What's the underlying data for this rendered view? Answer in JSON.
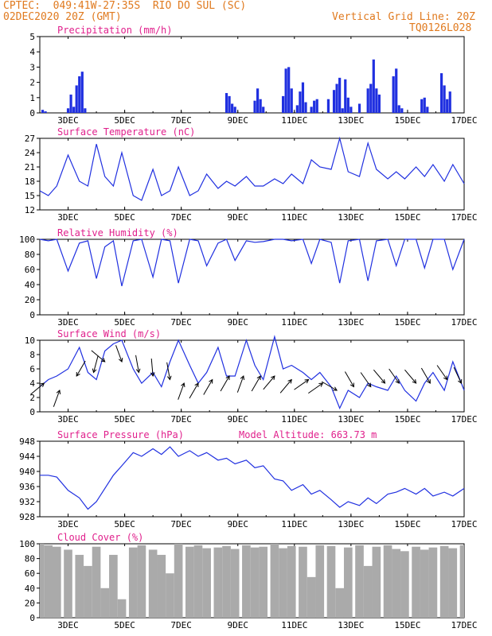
{
  "header": {
    "line1_left": "CPTEC:  049:41W-27:35S  RIO DO SUL (SC)",
    "line2_left": "02DEC2020 20Z (GMT)",
    "line1_right": "Vertical Grid Line: 20Z",
    "line2_right": "TQ0126L028"
  },
  "colors": {
    "header": "#e07a1f",
    "title": "#e0208c",
    "series": "#2030e0",
    "cloud": "#aaaaaa",
    "arrow": "#000000"
  },
  "x_tick_labels": [
    "3DEC",
    "5DEC",
    "7DEC",
    "9DEC",
    "11DEC",
    "13DEC",
    "15DEC",
    "17DEC"
  ],
  "chart_data": [
    {
      "type": "bar",
      "title": "Precipitation (mm/h)",
      "ylim": [
        0,
        5
      ],
      "yticks": [
        "0",
        "1",
        "2",
        "3",
        "4",
        "5"
      ],
      "x_range_days": [
        2.0,
        17.0
      ],
      "series": [
        {
          "name": "",
          "x": [
            2.1,
            2.2,
            3.0,
            3.1,
            3.2,
            3.3,
            3.4,
            3.5,
            3.6,
            8.6,
            8.7,
            8.8,
            8.9,
            9.6,
            9.7,
            9.8,
            9.9,
            10.6,
            10.7,
            10.8,
            10.9,
            11.1,
            11.2,
            11.3,
            11.4,
            11.6,
            11.7,
            11.8,
            12.2,
            12.4,
            12.5,
            12.6,
            12.7,
            12.8,
            12.9,
            13.0,
            13.3,
            13.6,
            13.7,
            13.8,
            13.9,
            14.0,
            14.5,
            14.6,
            14.7,
            14.8,
            15.5,
            15.6,
            15.7,
            16.2,
            16.3,
            16.4,
            16.5
          ],
          "values": [
            0.2,
            0.1,
            0.3,
            1.2,
            0.4,
            1.8,
            2.4,
            2.7,
            0.3,
            1.3,
            1.1,
            0.6,
            0.4,
            0.8,
            1.6,
            0.9,
            0.4,
            1.1,
            2.9,
            3.0,
            1.6,
            0.5,
            1.4,
            2.0,
            0.7,
            0.4,
            0.8,
            0.9,
            0.9,
            1.5,
            1.9,
            2.3,
            0.3,
            2.2,
            1.0,
            0.4,
            0.6,
            1.6,
            1.9,
            3.5,
            1.6,
            1.2,
            2.4,
            2.9,
            0.5,
            0.3,
            0.9,
            1.0,
            0.4,
            2.6,
            1.8,
            0.9,
            1.4
          ]
        }
      ]
    },
    {
      "type": "line",
      "title": "Surface Temperature (nC)",
      "ylim": [
        12,
        27
      ],
      "yticks": [
        "12",
        "15",
        "18",
        "21",
        "24",
        "27"
      ],
      "series": [
        {
          "name": "",
          "x": [
            2.0,
            2.3,
            2.6,
            3.0,
            3.4,
            3.7,
            4.0,
            4.3,
            4.6,
            4.9,
            5.3,
            5.6,
            6.0,
            6.3,
            6.6,
            6.9,
            7.3,
            7.6,
            7.9,
            8.3,
            8.6,
            8.9,
            9.3,
            9.6,
            9.9,
            10.3,
            10.6,
            10.9,
            11.3,
            11.6,
            11.9,
            12.3,
            12.6,
            12.9,
            13.3,
            13.6,
            13.9,
            14.3,
            14.6,
            14.9,
            15.3,
            15.6,
            15.9,
            16.3,
            16.6,
            17.0
          ],
          "values": [
            16.0,
            15.0,
            17.0,
            23.5,
            18.0,
            17.0,
            25.8,
            19.0,
            17.0,
            24.0,
            15.0,
            14.0,
            20.5,
            15.0,
            16.0,
            21.0,
            15.0,
            16.0,
            19.5,
            16.5,
            18.0,
            17.0,
            19.0,
            17.0,
            17.0,
            18.5,
            17.5,
            19.5,
            17.5,
            22.5,
            21.0,
            20.5,
            27.0,
            20.0,
            19.0,
            26.0,
            20.5,
            18.5,
            20.0,
            18.5,
            21.0,
            19.0,
            21.5,
            18.0,
            21.5,
            17.5
          ]
        }
      ]
    },
    {
      "type": "line",
      "title": "Relative Humidity (%)",
      "ylim": [
        0,
        100
      ],
      "yticks": [
        "0",
        "20",
        "40",
        "60",
        "80",
        "100"
      ],
      "series": [
        {
          "name": "",
          "x": [
            2.0,
            2.3,
            2.6,
            3.0,
            3.4,
            3.7,
            4.0,
            4.3,
            4.6,
            4.9,
            5.3,
            5.6,
            6.0,
            6.3,
            6.6,
            6.9,
            7.3,
            7.6,
            7.9,
            8.3,
            8.6,
            8.9,
            9.3,
            9.6,
            9.9,
            10.3,
            10.6,
            10.9,
            11.3,
            11.6,
            11.9,
            12.3,
            12.6,
            12.9,
            13.3,
            13.6,
            13.9,
            14.3,
            14.6,
            14.9,
            15.3,
            15.6,
            15.9,
            16.3,
            16.6,
            17.0
          ],
          "values": [
            100,
            98,
            100,
            58,
            95,
            98,
            48,
            90,
            98,
            38,
            98,
            100,
            50,
            100,
            98,
            42,
            100,
            98,
            65,
            95,
            100,
            72,
            98,
            96,
            97,
            100,
            100,
            98,
            100,
            68,
            100,
            96,
            42,
            98,
            100,
            45,
            98,
            100,
            65,
            100,
            100,
            62,
            100,
            100,
            60,
            100
          ]
        }
      ]
    },
    {
      "type": "line",
      "title": "Surface Wind (m/s)",
      "ylim": [
        0,
        10
      ],
      "yticks": [
        "0",
        "2",
        "4",
        "6",
        "8",
        "10"
      ],
      "series": [
        {
          "name": "",
          "x": [
            2.0,
            2.3,
            2.6,
            3.0,
            3.4,
            3.7,
            4.0,
            4.3,
            4.6,
            4.9,
            5.3,
            5.6,
            6.0,
            6.3,
            6.6,
            6.9,
            7.3,
            7.6,
            7.9,
            8.3,
            8.6,
            8.9,
            9.3,
            9.6,
            9.9,
            10.3,
            10.6,
            10.9,
            11.3,
            11.6,
            11.9,
            12.3,
            12.6,
            12.9,
            13.3,
            13.6,
            13.9,
            14.3,
            14.6,
            14.9,
            15.3,
            15.6,
            15.9,
            16.3,
            16.6,
            17.0
          ],
          "values": [
            3.5,
            4.5,
            5.0,
            6.0,
            9.0,
            5.5,
            4.5,
            8.5,
            9.5,
            10.0,
            6.0,
            4.0,
            5.5,
            3.5,
            7.0,
            10.0,
            6.5,
            4.0,
            5.5,
            9.0,
            5.0,
            5.0,
            10.0,
            6.5,
            4.5,
            10.5,
            6.0,
            6.5,
            5.5,
            4.5,
            5.5,
            3.5,
            0.5,
            3.0,
            2.0,
            4.0,
            3.5,
            3.0,
            5.0,
            3.0,
            1.5,
            4.0,
            5.5,
            3.0,
            7.0,
            3.0
          ]
        }
      ]
    },
    {
      "type": "line",
      "title": "Surface Pressure (hPa)",
      "annotation": "Model Altitude: 663.73 m",
      "ylim": [
        928,
        948
      ],
      "yticks": [
        "928",
        "932",
        "936",
        "940",
        "944",
        "948"
      ],
      "series": [
        {
          "name": "",
          "x": [
            2.0,
            2.3,
            2.6,
            3.0,
            3.4,
            3.7,
            4.0,
            4.3,
            4.6,
            4.9,
            5.3,
            5.6,
            6.0,
            6.3,
            6.6,
            6.9,
            7.3,
            7.6,
            7.9,
            8.3,
            8.6,
            8.9,
            9.3,
            9.6,
            9.9,
            10.3,
            10.6,
            10.9,
            11.3,
            11.6,
            11.9,
            12.3,
            12.6,
            12.9,
            13.3,
            13.6,
            13.9,
            14.3,
            14.6,
            14.9,
            15.3,
            15.6,
            15.9,
            16.3,
            16.6,
            17.0
          ],
          "values": [
            939.0,
            939.0,
            938.5,
            935.0,
            933.0,
            930.0,
            932.0,
            935.5,
            939.0,
            941.5,
            945.0,
            944.0,
            946.0,
            944.5,
            946.5,
            944.0,
            945.5,
            944.0,
            945.0,
            943.0,
            943.5,
            942.0,
            943.0,
            941.0,
            941.5,
            938.0,
            937.5,
            935.0,
            936.5,
            934.0,
            935.0,
            932.5,
            930.5,
            932.0,
            931.0,
            933.0,
            931.5,
            934.0,
            934.5,
            935.5,
            934.0,
            935.5,
            933.5,
            934.5,
            933.5,
            935.5
          ]
        }
      ]
    },
    {
      "type": "bar",
      "title": "Cloud Cover (%)",
      "ylim": [
        0,
        100
      ],
      "yticks": [
        "0",
        "20",
        "40",
        "60",
        "80",
        "100"
      ],
      "series": [
        {
          "name": "",
          "x": [
            2.0,
            2.3,
            2.6,
            3.0,
            3.4,
            3.7,
            4.0,
            4.3,
            4.6,
            4.9,
            5.3,
            5.6,
            6.0,
            6.3,
            6.6,
            6.9,
            7.3,
            7.6,
            7.9,
            8.3,
            8.6,
            8.9,
            9.3,
            9.6,
            9.9,
            10.3,
            10.6,
            10.9,
            11.3,
            11.6,
            11.9,
            12.3,
            12.6,
            12.9,
            13.3,
            13.6,
            13.9,
            14.3,
            14.6,
            14.9,
            15.3,
            15.6,
            15.9,
            16.3,
            16.6,
            17.0
          ],
          "values": [
            100,
            98,
            96,
            92,
            85,
            70,
            96,
            40,
            85,
            25,
            95,
            98,
            92,
            85,
            60,
            100,
            96,
            98,
            94,
            95,
            97,
            93,
            98,
            95,
            96,
            100,
            94,
            97,
            96,
            55,
            98,
            97,
            40,
            95,
            98,
            70,
            96,
            98,
            93,
            90,
            96,
            92,
            95,
            97,
            94,
            98
          ]
        }
      ]
    }
  ],
  "wind_barbs": [
    {
      "day": 2.15,
      "speed": 4.0,
      "dir_deg": 220
    },
    {
      "day": 2.7,
      "speed": 3.0,
      "dir_deg": 250
    },
    {
      "day": 3.3,
      "speed": 5.0,
      "dir_deg": 60
    },
    {
      "day": 3.9,
      "speed": 5.5,
      "dir_deg": 75
    },
    {
      "day": 4.3,
      "speed": 7.0,
      "dir_deg": 140
    },
    {
      "day": 4.9,
      "speed": 7.0,
      "dir_deg": 110
    },
    {
      "day": 5.5,
      "speed": 5.5,
      "dir_deg": 100
    },
    {
      "day": 6.0,
      "speed": 5.0,
      "dir_deg": 95
    },
    {
      "day": 6.6,
      "speed": 4.5,
      "dir_deg": 100
    },
    {
      "day": 7.1,
      "speed": 4.0,
      "dir_deg": 250
    },
    {
      "day": 7.6,
      "speed": 4.0,
      "dir_deg": 240
    },
    {
      "day": 8.1,
      "speed": 4.5,
      "dir_deg": 240
    },
    {
      "day": 8.7,
      "speed": 5.0,
      "dir_deg": 240
    },
    {
      "day": 9.2,
      "speed": 5.0,
      "dir_deg": 250
    },
    {
      "day": 9.8,
      "speed": 5.0,
      "dir_deg": 240
    },
    {
      "day": 10.3,
      "speed": 5.0,
      "dir_deg": 230
    },
    {
      "day": 10.9,
      "speed": 4.5,
      "dir_deg": 230
    },
    {
      "day": 11.5,
      "speed": 4.5,
      "dir_deg": 215
    },
    {
      "day": 12.0,
      "speed": 4.0,
      "dir_deg": 215
    },
    {
      "day": 12.5,
      "speed": 3.0,
      "dir_deg": 150
    },
    {
      "day": 13.1,
      "speed": 3.5,
      "dir_deg": 120
    },
    {
      "day": 13.7,
      "speed": 3.5,
      "dir_deg": 125
    },
    {
      "day": 14.2,
      "speed": 4.0,
      "dir_deg": 130
    },
    {
      "day": 14.7,
      "speed": 4.0,
      "dir_deg": 125
    },
    {
      "day": 15.3,
      "speed": 4.0,
      "dir_deg": 130
    },
    {
      "day": 15.8,
      "speed": 4.0,
      "dir_deg": 120
    },
    {
      "day": 16.4,
      "speed": 4.5,
      "dir_deg": 125
    },
    {
      "day": 16.9,
      "speed": 4.0,
      "dir_deg": 115
    }
  ]
}
